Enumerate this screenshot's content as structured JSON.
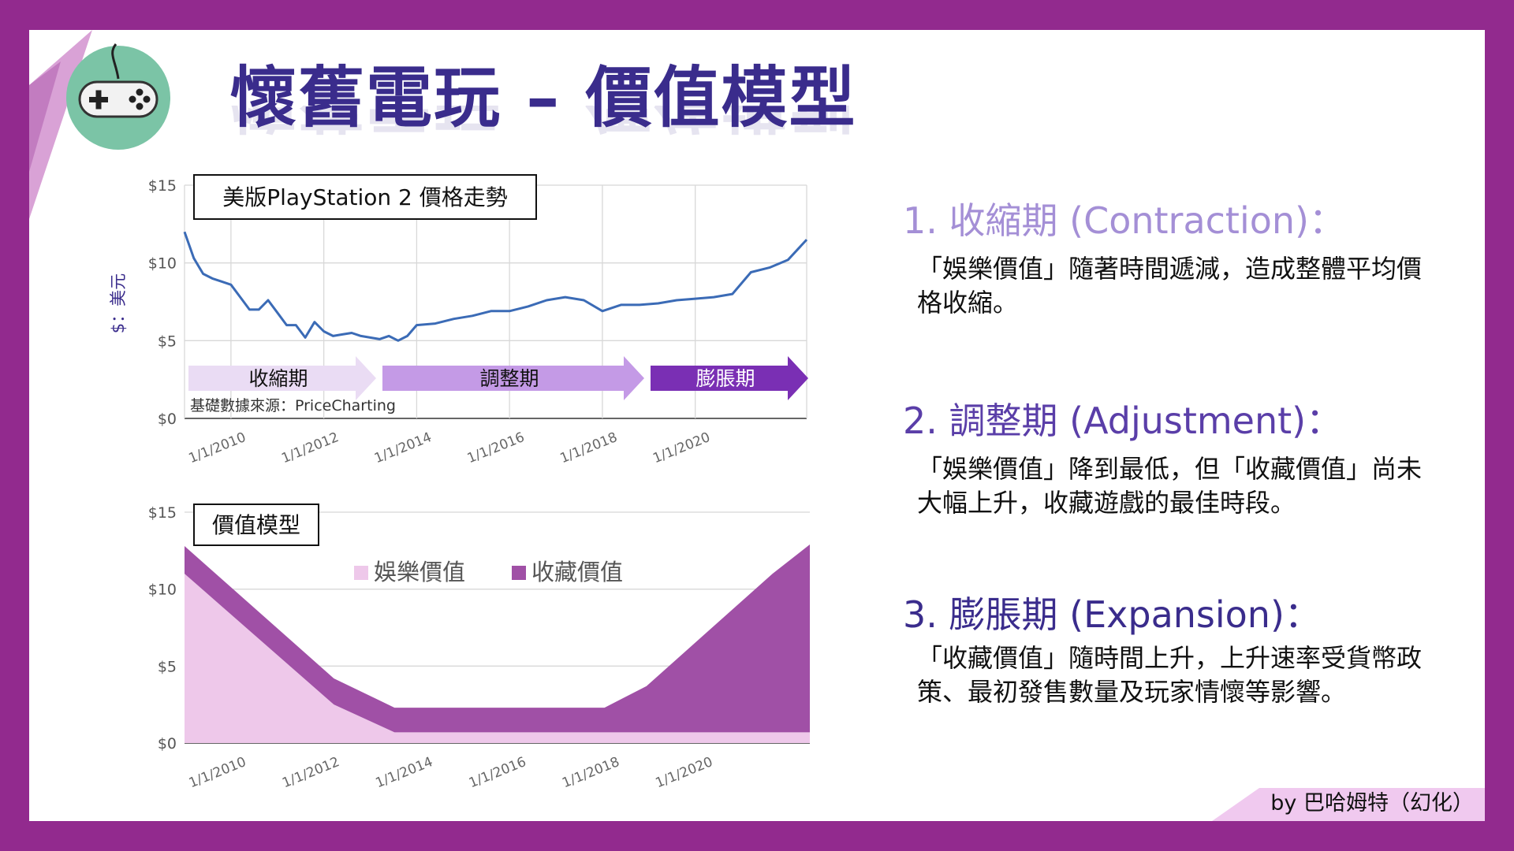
{
  "title": "懷舊電玩 – 價值模型",
  "icon": "gamepad-icon",
  "colors": {
    "frame": "#922a8e",
    "title": "#3a2c8c",
    "section1": "#a48fd6",
    "section2": "#5a3ea8",
    "section3": "#3a2c8c",
    "line": "#3b6bb6",
    "arrow_contraction": "#eadcf4",
    "arrow_adjustment": "#c49ae6",
    "arrow_expansion": "#7a2fb4",
    "entertainment": "#eec8ea",
    "collection": "#a050a6"
  },
  "y_axis_label": "$：美元",
  "source": "基礎數據來源：PriceCharting",
  "phases": [
    "收縮期",
    "調整期",
    "膨脹期"
  ],
  "chart_data": [
    {
      "type": "line",
      "title": "美版PlayStation 2 價格走勢",
      "ylabel": "$：美元",
      "ylim": [
        0,
        15
      ],
      "yticks": [
        "$0",
        "$5",
        "$10",
        "$15"
      ],
      "xticks": [
        "1/1/2010",
        "1/1/2012",
        "1/1/2014",
        "1/1/2016",
        "1/1/2018",
        "1/1/2020"
      ],
      "xlim": [
        2009.0,
        2022.4
      ],
      "grid": true,
      "x": [
        2009.0,
        2009.2,
        2009.4,
        2009.6,
        2009.8,
        2010.0,
        2010.2,
        2010.4,
        2010.6,
        2010.8,
        2011.0,
        2011.2,
        2011.4,
        2011.6,
        2011.8,
        2012.0,
        2012.2,
        2012.4,
        2012.6,
        2012.8,
        2013.0,
        2013.2,
        2013.4,
        2013.6,
        2013.8,
        2014.0,
        2014.4,
        2014.8,
        2015.2,
        2015.6,
        2016.0,
        2016.4,
        2016.8,
        2017.2,
        2017.6,
        2018.0,
        2018.4,
        2018.8,
        2019.2,
        2019.6,
        2020.0,
        2020.4,
        2020.8,
        2021.2,
        2021.6,
        2022.0,
        2022.4
      ],
      "y": [
        12.0,
        10.3,
        9.3,
        9.0,
        8.8,
        8.6,
        7.8,
        7.0,
        7.0,
        7.6,
        6.8,
        6.0,
        6.0,
        5.2,
        6.2,
        5.6,
        5.3,
        5.4,
        5.5,
        5.3,
        5.2,
        5.1,
        5.3,
        5.0,
        5.3,
        6.0,
        6.1,
        6.4,
        6.6,
        6.9,
        6.9,
        7.2,
        7.6,
        7.8,
        7.6,
        6.9,
        7.3,
        7.3,
        7.4,
        7.6,
        7.7,
        7.8,
        8.0,
        9.4,
        9.7,
        10.2,
        11.5
      ]
    },
    {
      "type": "area",
      "title": "價值模型",
      "ylim": [
        0,
        15
      ],
      "yticks": [
        "$0",
        "$5",
        "$10",
        "$15"
      ],
      "xticks": [
        "1/1/2010",
        "1/1/2012",
        "1/1/2014",
        "1/1/2016",
        "1/1/2018",
        "1/1/2020"
      ],
      "xlim": [
        2009.0,
        2022.4
      ],
      "legend": "top",
      "x": [
        2009.0,
        2012.2,
        2013.5,
        2018.0,
        2018.9,
        2021.6,
        2022.4
      ],
      "series": [
        {
          "name": "娛樂價值",
          "values": [
            11.0,
            2.5,
            0.7,
            0.7,
            0.7,
            0.7,
            0.7
          ]
        },
        {
          "name": "收藏價值",
          "values": [
            1.8,
            1.7,
            1.6,
            1.6,
            3.0,
            10.3,
            12.2
          ]
        }
      ]
    }
  ],
  "sections": [
    {
      "heading": "1. 收縮期 (Contraction)：",
      "text": "「娛樂價值」隨著時間遞減，造成整體平均價格收縮。"
    },
    {
      "heading": "2. 調整期 (Adjustment)：",
      "text": "「娛樂價值」降到最低，但「收藏價值」尚未大幅上升，收藏遊戲的最佳時段。"
    },
    {
      "heading": "3. 膨脹期 (Expansion)：",
      "text": "「收藏價值」隨時間上升，上升速率受貨幣政策、最初發售數量及玩家情懷等影響。"
    }
  ],
  "credit": "by 巴哈姆特（幻化）"
}
